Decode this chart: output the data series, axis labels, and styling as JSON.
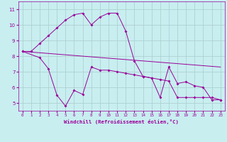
{
  "xlabel": "Windchill (Refroidissement éolien,°C)",
  "bg_color": "#c8eef0",
  "line_color": "#990099",
  "grid_color": "#aacccc",
  "xlim": [
    -0.5,
    23.5
  ],
  "ylim": [
    4.5,
    11.5
  ],
  "yticks": [
    5,
    6,
    7,
    8,
    9,
    10,
    11
  ],
  "xticks": [
    0,
    1,
    2,
    3,
    4,
    5,
    6,
    7,
    8,
    9,
    10,
    11,
    12,
    13,
    14,
    15,
    16,
    17,
    18,
    19,
    20,
    21,
    22,
    23
  ],
  "line1_x": [
    0,
    1,
    2,
    3,
    4,
    5,
    6,
    7,
    8,
    9,
    10,
    11,
    12,
    13,
    14,
    15,
    16,
    17,
    18,
    19,
    20,
    21,
    22,
    23
  ],
  "line1_y": [
    8.3,
    8.3,
    8.8,
    9.3,
    9.8,
    10.3,
    10.65,
    10.75,
    10.0,
    10.5,
    10.75,
    10.75,
    9.6,
    7.7,
    6.7,
    6.6,
    5.35,
    7.3,
    6.25,
    6.35,
    6.1,
    6.0,
    5.2,
    5.2
  ],
  "line2_x": [
    0,
    23
  ],
  "line2_y": [
    8.3,
    7.3
  ],
  "line3_x": [
    0,
    2,
    3,
    4,
    5,
    6,
    7,
    8,
    9,
    10,
    11,
    12,
    13,
    14,
    15,
    16,
    17,
    18,
    19,
    20,
    21,
    22,
    23
  ],
  "line3_y": [
    8.3,
    7.9,
    7.2,
    5.5,
    4.8,
    5.8,
    5.55,
    7.3,
    7.1,
    7.1,
    7.0,
    6.9,
    6.8,
    6.7,
    6.6,
    6.5,
    6.4,
    5.35,
    5.35,
    5.35,
    5.35,
    5.35,
    5.2
  ],
  "xtick_fontsize": 4.2,
  "ytick_fontsize": 5.0,
  "xlabel_fontsize": 5.2
}
